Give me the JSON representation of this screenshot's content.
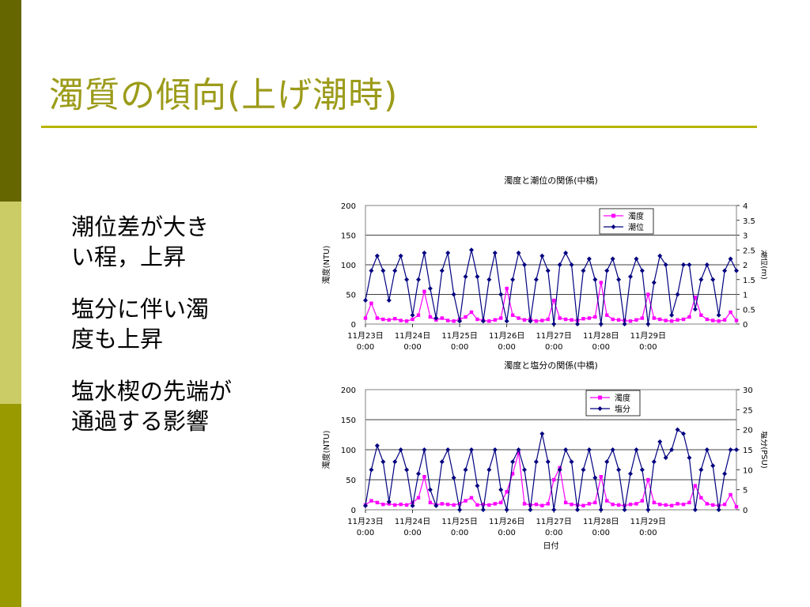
{
  "slide": {
    "title": "濁質の傾向(上げ潮時)",
    "bullets": [
      {
        "lines": [
          "潮位差が大き",
          "い程，上昇"
        ]
      },
      {
        "lines": [
          "塩分に伴い濁",
          "度も上昇"
        ]
      },
      {
        "lines": [
          "塩水楔の先端が",
          "通過する影響"
        ]
      }
    ]
  },
  "colors": {
    "sidebar": [
      "#666600",
      "#cccc66",
      "#999900"
    ],
    "title": "#9c9b1a",
    "rule": "#b8b400",
    "turbidity": "#ff00ff",
    "navy": "#000080"
  },
  "chart_data": [
    {
      "type": "line",
      "title": "濁度と潮位の関係(中橋)",
      "ylabel": "濁度(NTU)",
      "y2label": "潮位(m)",
      "xlabel": "",
      "ylim": [
        0,
        200
      ],
      "y2lim": [
        0,
        4
      ],
      "yticks": [
        "0",
        "50",
        "100",
        "150",
        "200"
      ],
      "y2ticks": [
        "0",
        "0.5",
        "1",
        "1.5",
        "2",
        "2.5",
        "3",
        "3.5",
        "4"
      ],
      "xticks": [
        {
          "date": "11月23日",
          "time": "0:00"
        },
        {
          "date": "11月24日",
          "time": "0:00"
        },
        {
          "date": "11月25日",
          "time": "0:00"
        },
        {
          "date": "11月26日",
          "time": "0:00"
        },
        {
          "date": "11月27日",
          "time": "0:00"
        },
        {
          "date": "11月28日",
          "time": "0:00"
        },
        {
          "date": "11月29日",
          "time": "0:00"
        }
      ],
      "x_unit": "hours since 11月23日 0:00",
      "grid": true,
      "legend_position": "top-right",
      "series": [
        {
          "name": "濁度",
          "axis": "left",
          "color": "#ff00ff",
          "marker": "square",
          "x": [
            0,
            3,
            6,
            9,
            12,
            15,
            18,
            21,
            24,
            27,
            30,
            33,
            36,
            39,
            42,
            45,
            48,
            51,
            54,
            57,
            60,
            63,
            66,
            69,
            72,
            75,
            78,
            81,
            84,
            87,
            90,
            93,
            96,
            99,
            102,
            105,
            108,
            111,
            114,
            117,
            120,
            123,
            126,
            129,
            132,
            135,
            138,
            141,
            144,
            147,
            150,
            153,
            156,
            159,
            162,
            165,
            168,
            171,
            174,
            177,
            180,
            183,
            186,
            189
          ],
          "values": [
            10,
            35,
            10,
            8,
            7,
            9,
            6,
            5,
            8,
            15,
            55,
            12,
            7,
            10,
            6,
            5,
            8,
            12,
            20,
            8,
            6,
            5,
            7,
            10,
            60,
            15,
            10,
            7,
            8,
            5,
            6,
            8,
            40,
            10,
            8,
            7,
            6,
            9,
            10,
            12,
            70,
            15,
            8,
            7,
            6,
            5,
            7,
            10,
            50,
            10,
            8,
            6,
            5,
            7,
            8,
            12,
            45,
            15,
            8,
            6,
            5,
            7,
            20,
            6
          ]
        },
        {
          "name": "潮位",
          "axis": "right",
          "color": "#000080",
          "marker": "diamond",
          "x": [
            0,
            3,
            6,
            9,
            12,
            15,
            18,
            21,
            24,
            27,
            30,
            33,
            36,
            39,
            42,
            45,
            48,
            51,
            54,
            57,
            60,
            63,
            66,
            69,
            72,
            75,
            78,
            81,
            84,
            87,
            90,
            93,
            96,
            99,
            102,
            105,
            108,
            111,
            114,
            117,
            120,
            123,
            126,
            129,
            132,
            135,
            138,
            141,
            144,
            147,
            150,
            153,
            156,
            159,
            162,
            165,
            168,
            171,
            174,
            177,
            180,
            183,
            186,
            189
          ],
          "values": [
            0.8,
            1.8,
            2.3,
            1.8,
            0.8,
            1.8,
            2.3,
            1.5,
            0.3,
            1.5,
            2.4,
            1.2,
            0.2,
            1.8,
            2.4,
            1.0,
            0.1,
            1.6,
            2.5,
            1.6,
            0.1,
            1.5,
            2.4,
            1.0,
            0.1,
            1.5,
            2.4,
            2.0,
            0.1,
            1.5,
            2.3,
            1.8,
            0.0,
            2.0,
            2.4,
            2.0,
            0.0,
            1.8,
            2.2,
            1.5,
            0.0,
            1.8,
            2.2,
            1.5,
            0.0,
            1.6,
            2.2,
            1.8,
            0.0,
            1.4,
            2.3,
            2.0,
            0.3,
            1.0,
            2.0,
            2.0,
            0.5,
            1.5,
            2.0,
            1.5,
            0.3,
            1.8,
            2.2,
            1.8
          ]
        }
      ]
    },
    {
      "type": "line",
      "title": "濁度と塩分の関係(中橋)",
      "ylabel": "濁度(NTU)",
      "y2label": "塩分(PSU)",
      "xlabel": "日付",
      "ylim": [
        0,
        200
      ],
      "y2lim": [
        0,
        30
      ],
      "yticks": [
        "0",
        "50",
        "100",
        "150",
        "200"
      ],
      "y2ticks": [
        "0",
        "5",
        "10",
        "15",
        "20",
        "25",
        "30"
      ],
      "xticks": [
        {
          "date": "11月23日",
          "time": "0:00"
        },
        {
          "date": "11月24日",
          "time": "0:00"
        },
        {
          "date": "11月25日",
          "time": "0:00"
        },
        {
          "date": "11月26日",
          "time": "0:00"
        },
        {
          "date": "11月27日",
          "time": "0:00"
        },
        {
          "date": "11月28日",
          "time": "0:00"
        },
        {
          "date": "11月29日",
          "time": "0:00"
        }
      ],
      "x_unit": "hours since 11月23日 0:00",
      "grid": true,
      "legend_position": "top-right",
      "series": [
        {
          "name": "濁度",
          "axis": "left",
          "color": "#ff00ff",
          "marker": "square",
          "x": [
            0,
            3,
            6,
            9,
            12,
            15,
            18,
            21,
            24,
            27,
            30,
            33,
            36,
            39,
            42,
            45,
            48,
            51,
            54,
            57,
            60,
            63,
            66,
            69,
            72,
            75,
            78,
            81,
            84,
            87,
            90,
            93,
            96,
            99,
            102,
            105,
            108,
            111,
            114,
            117,
            120,
            123,
            126,
            129,
            132,
            135,
            138,
            141,
            144,
            147,
            150,
            153,
            156,
            159,
            162,
            165,
            168,
            171,
            174,
            177,
            180,
            183,
            186,
            189
          ],
          "values": [
            8,
            15,
            12,
            9,
            10,
            8,
            9,
            8,
            12,
            20,
            55,
            12,
            8,
            10,
            9,
            8,
            10,
            15,
            20,
            8,
            9,
            8,
            10,
            12,
            30,
            60,
            95,
            10,
            8,
            9,
            7,
            10,
            50,
            70,
            12,
            9,
            8,
            7,
            10,
            12,
            55,
            15,
            9,
            8,
            7,
            9,
            10,
            15,
            50,
            12,
            9,
            8,
            7,
            10,
            9,
            12,
            40,
            20,
            10,
            8,
            7,
            9,
            25,
            5
          ]
        },
        {
          "name": "塩分",
          "axis": "right",
          "color": "#000080",
          "marker": "diamond",
          "x": [
            0,
            3,
            6,
            9,
            12,
            15,
            18,
            21,
            24,
            27,
            30,
            33,
            36,
            39,
            42,
            45,
            48,
            51,
            54,
            57,
            60,
            63,
            66,
            69,
            72,
            75,
            78,
            81,
            84,
            87,
            90,
            93,
            96,
            99,
            102,
            105,
            108,
            111,
            114,
            117,
            120,
            123,
            126,
            129,
            132,
            135,
            138,
            141,
            144,
            147,
            150,
            153,
            156,
            159,
            162,
            165,
            168,
            171,
            174,
            177,
            180,
            183,
            186,
            189
          ],
          "values": [
            1,
            10,
            16,
            12,
            2,
            12,
            15,
            10,
            1,
            9,
            15,
            5,
            1,
            12,
            15,
            8,
            0,
            10,
            15,
            6,
            0,
            10,
            15,
            5,
            0,
            12,
            15,
            10,
            0,
            12,
            19,
            12,
            0,
            10,
            15,
            12,
            0,
            10,
            15,
            8,
            0,
            12,
            15,
            10,
            0,
            9,
            15,
            10,
            0,
            12,
            17,
            13,
            15,
            20,
            19,
            13,
            0,
            10,
            15,
            11,
            0,
            9,
            15,
            15
          ]
        }
      ]
    }
  ]
}
